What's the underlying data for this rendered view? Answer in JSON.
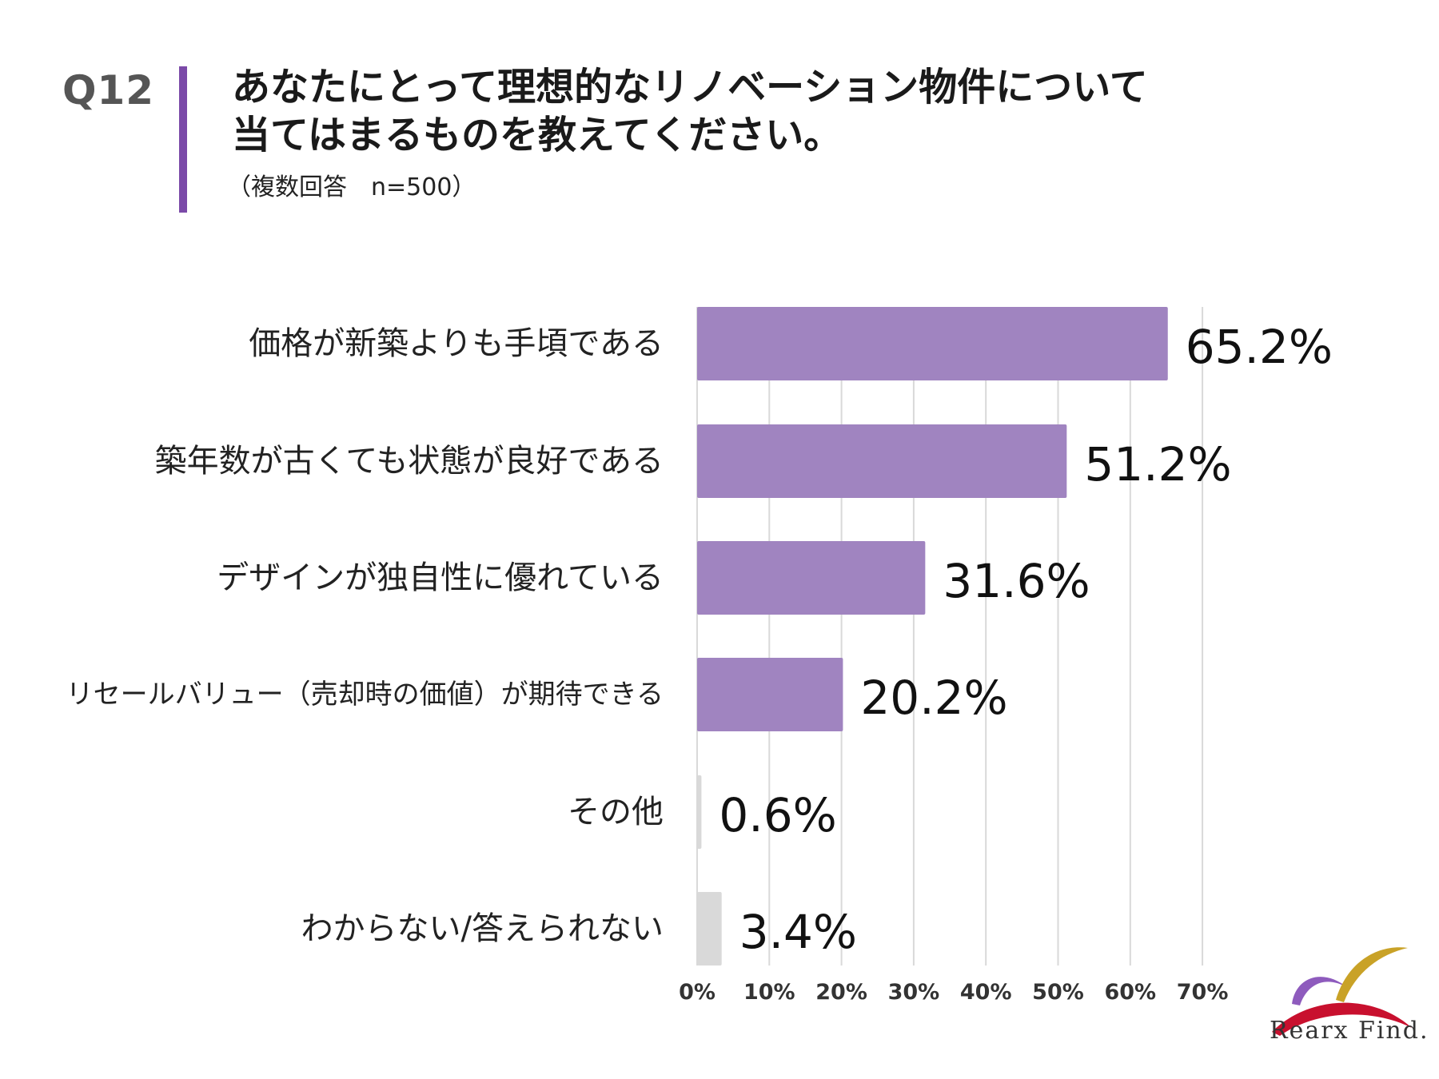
{
  "header": {
    "question_number": "Q12",
    "title_line1": "あなたにとって理想的なリノベーション物件について",
    "title_line2": "当てはまるものを教えてください。",
    "subtitle": "（複数回答　n=500）"
  },
  "colors": {
    "accent": "#7b4aa8",
    "bar_primary": "#a084c0",
    "bar_secondary": "#d9d9d9",
    "gridline": "#d9d9d9"
  },
  "chart_data": {
    "type": "bar",
    "orientation": "horizontal",
    "title": "あなたにとって理想的なリノベーション物件について当てはまるものを教えてください。",
    "categories": [
      "価格が新築よりも手頃である",
      "築年数が古くても状態が良好である",
      "デザインが独自性に優れている",
      "リセールバリュー（売却時の価値）が期待できる",
      "その他",
      "わからない/答えられない"
    ],
    "values": [
      65.2,
      51.2,
      31.6,
      20.2,
      0.6,
      3.4
    ],
    "value_labels": [
      "65.2%",
      "51.2%",
      "31.6%",
      "20.2%",
      "0.6%",
      "3.4%"
    ],
    "bar_colors": [
      "#a084c0",
      "#a084c0",
      "#a084c0",
      "#a084c0",
      "#d9d9d9",
      "#d9d9d9"
    ],
    "x_ticks": [
      "0%",
      "10%",
      "20%",
      "30%",
      "40%",
      "50%",
      "60%",
      "70%"
    ],
    "xlim": [
      0,
      70
    ],
    "grid": true
  },
  "logo": {
    "text": "Rearx Find."
  }
}
